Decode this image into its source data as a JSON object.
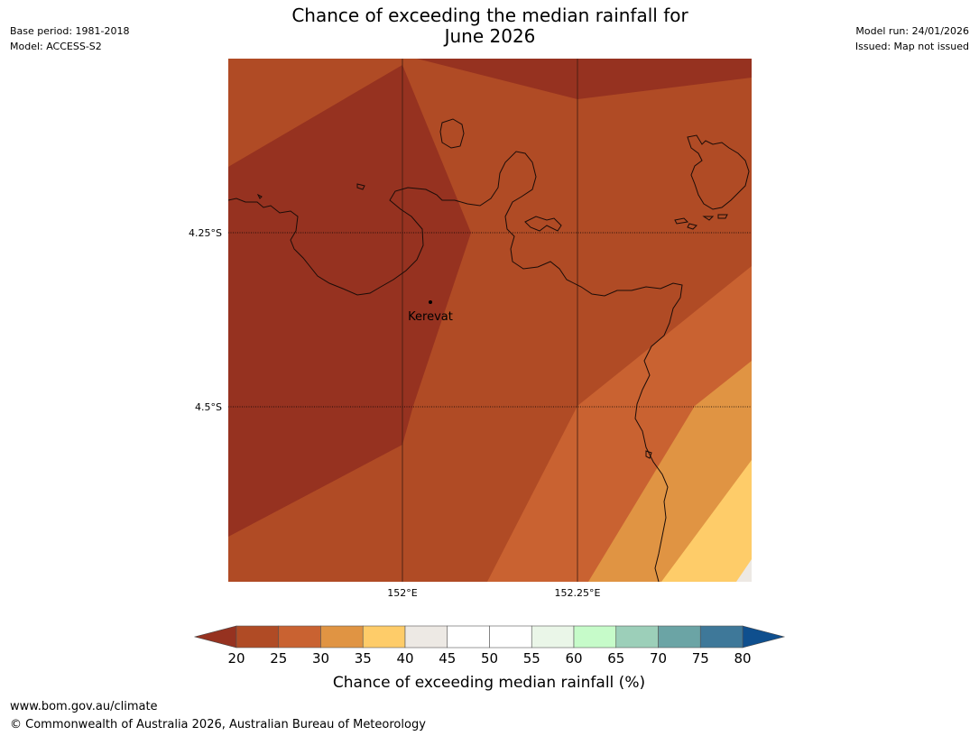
{
  "title_line1": "Chance of exceeding the median rainfall for",
  "title_line2": "June 2026",
  "meta_left": {
    "base_period": "Base period: 1981-2018",
    "model": "Model: ACCESS-S2"
  },
  "meta_right": {
    "model_run": "Model run: 24/01/2026",
    "issued": "Issued: Map not issued"
  },
  "map": {
    "lat_labels": [
      "4.25°S",
      "4.5°S"
    ],
    "lon_labels": [
      "152°E",
      "152.25°E"
    ],
    "place": "Kerevat"
  },
  "colorbar": {
    "title": "Chance of exceeding median rainfall (%)",
    "ticks": [
      "20",
      "25",
      "30",
      "35",
      "40",
      "45",
      "50",
      "55",
      "60",
      "65",
      "70",
      "75",
      "80"
    ],
    "under_color": "#963220",
    "over_color": "#0f4f8e",
    "colors": [
      "#b04b25",
      "#c96231",
      "#e09443",
      "#fecc69",
      "#ede9e4",
      "#ffffff",
      "#ffffff",
      "#eaf6e8",
      "#c6fbc9",
      "#9ccfb9",
      "#6ba4a5",
      "#3e7899"
    ]
  },
  "footer": {
    "url": "www.bom.gov.au/climate",
    "copyright": "© Commonwealth of Australia 2026, Australian Bureau of Meteorology"
  }
}
